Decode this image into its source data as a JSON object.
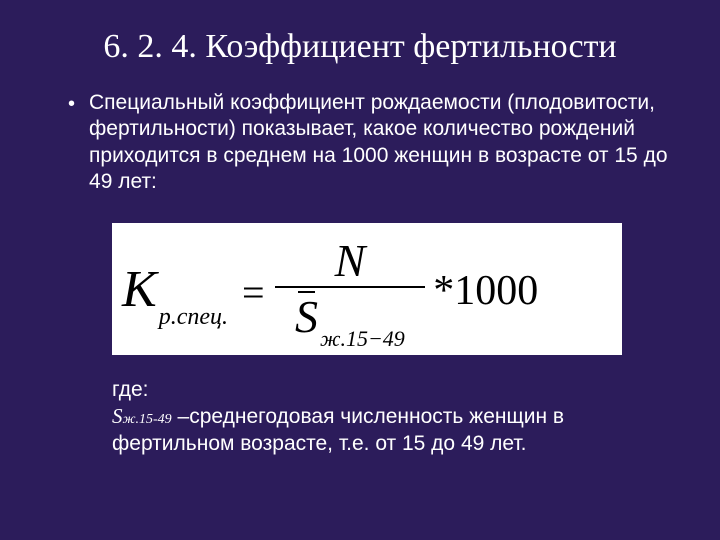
{
  "colors": {
    "background": "#2c1c5b",
    "text": "#ffffff",
    "formula_bg": "#ffffff",
    "formula_text": "#000000"
  },
  "title": "6. 2. 4. Коэффициент фертильности",
  "bullet": "Специальный коэффициент рождаемости (плодовитости, фертильности) показывает, какое количество рождений приходится в среднем на 1000 женщин в возрасте от 15 до 49 лет:",
  "formula": {
    "lhs_var": "K",
    "lhs_sub": "р.спец.",
    "eq": "=",
    "num": "N",
    "den_var": "S",
    "den_sub": "ж.15−49",
    "tail": "*1000"
  },
  "legend": {
    "where": "где:",
    "sym": "S",
    "sub": "ж.15-49",
    "dash": " –",
    "text": "среднегодовая численность женщин в фертильном возрасте, т.е. от 15 до 49 лет."
  }
}
